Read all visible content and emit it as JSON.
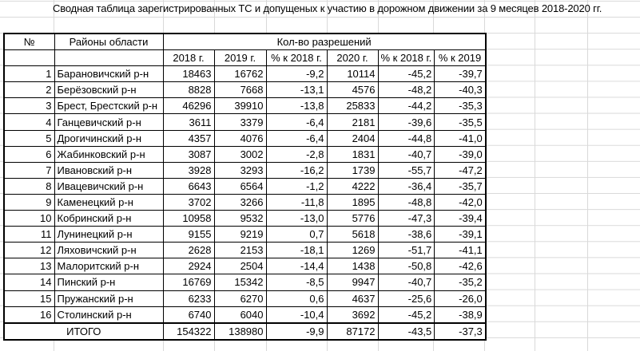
{
  "title": "Сводная таблица зарегистрированных ТС и допущеных к участию в дорожном движении за 9 месяцев 2018-2020 гг.",
  "header": {
    "no": "№",
    "district": "Районы области",
    "group": "Кол-во разрешений",
    "columns": [
      "2018 г.",
      "2019 г.",
      "% к 2018 г.",
      "2020 г.",
      "% к 2018 г.",
      "% к 2019"
    ]
  },
  "rows": [
    {
      "no": "1",
      "name": "Барановичский р-н",
      "v": [
        "18463",
        "16762",
        "-9,2",
        "10114",
        "-45,2",
        "-39,7"
      ]
    },
    {
      "no": "2",
      "name": "Берёзовский р-н",
      "v": [
        "8828",
        "7668",
        "-13,1",
        "4576",
        "-48,2",
        "-40,3"
      ]
    },
    {
      "no": "3",
      "name": "Брест, Брестский р-н",
      "v": [
        "46296",
        "39910",
        "-13,8",
        "25833",
        "-44,2",
        "-35,3"
      ]
    },
    {
      "no": "4",
      "name": "Ганцевичский р-н",
      "v": [
        "3611",
        "3379",
        "-6,4",
        "2181",
        "-39,6",
        "-35,5"
      ]
    },
    {
      "no": "5",
      "name": "Дрогичинский р-н",
      "v": [
        "4357",
        "4076",
        "-6,4",
        "2404",
        "-44,8",
        "-41,0"
      ]
    },
    {
      "no": "6",
      "name": "Жабинковский р-н",
      "v": [
        "3087",
        "3002",
        "-2,8",
        "1831",
        "-40,7",
        "-39,0"
      ]
    },
    {
      "no": "7",
      "name": "Ивановский р-н",
      "v": [
        "3928",
        "3293",
        "-16,2",
        "1739",
        "-55,7",
        "-47,2"
      ]
    },
    {
      "no": "8",
      "name": "Ивацевичский р-н",
      "v": [
        "6643",
        "6564",
        "-1,2",
        "4222",
        "-36,4",
        "-35,7"
      ]
    },
    {
      "no": "9",
      "name": "Каменецкий р-н",
      "v": [
        "3702",
        "3266",
        "-11,8",
        "1895",
        "-48,8",
        "-42,0"
      ]
    },
    {
      "no": "10",
      "name": "Кобринский р-н",
      "v": [
        "10958",
        "9532",
        "-13,0",
        "5776",
        "-47,3",
        "-39,4"
      ]
    },
    {
      "no": "11",
      "name": "Лунинецкий р-н",
      "v": [
        "9155",
        "9219",
        "0,7",
        "5618",
        "-38,6",
        "-39,1"
      ]
    },
    {
      "no": "12",
      "name": "Ляховичский р-н",
      "v": [
        "2628",
        "2153",
        "-18,1",
        "1269",
        "-51,7",
        "-41,1"
      ]
    },
    {
      "no": "13",
      "name": "Малоритский р-н",
      "v": [
        "2924",
        "2504",
        "-14,4",
        "1438",
        "-50,8",
        "-42,6"
      ]
    },
    {
      "no": "14",
      "name": "Пинский р-н",
      "v": [
        "16769",
        "15342",
        "-8,5",
        "9947",
        "-40,7",
        "-35,2"
      ]
    },
    {
      "no": "15",
      "name": "Пружанский р-н",
      "v": [
        "6233",
        "6270",
        "0,6",
        "4637",
        "-25,6",
        "-26,0"
      ]
    },
    {
      "no": "16",
      "name": "Столинский р-н",
      "v": [
        "6740",
        "6040",
        "-10,4",
        "3692",
        "-45,2",
        "-38,9"
      ]
    }
  ],
  "total": {
    "label": "ИТОГО",
    "v": [
      "154322",
      "138980",
      "-9,9",
      "87172",
      "-43,5",
      "-37,3"
    ]
  }
}
